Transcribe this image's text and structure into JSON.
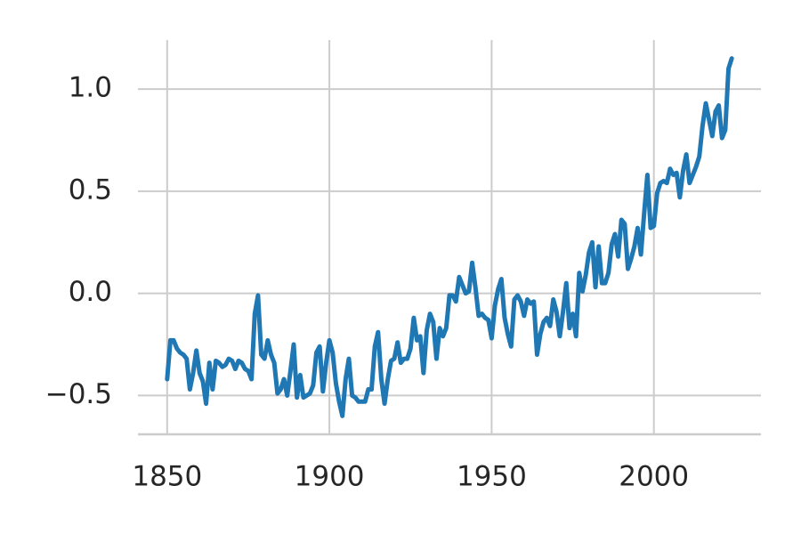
{
  "chart_data": {
    "type": "line",
    "x": [
      1850,
      1851,
      1852,
      1853,
      1854,
      1855,
      1856,
      1857,
      1858,
      1859,
      1860,
      1861,
      1862,
      1863,
      1864,
      1865,
      1866,
      1867,
      1868,
      1869,
      1870,
      1871,
      1872,
      1873,
      1874,
      1875,
      1876,
      1877,
      1878,
      1879,
      1880,
      1881,
      1882,
      1883,
      1884,
      1885,
      1886,
      1887,
      1888,
      1889,
      1890,
      1891,
      1892,
      1893,
      1894,
      1895,
      1896,
      1897,
      1898,
      1899,
      1900,
      1901,
      1902,
      1903,
      1904,
      1905,
      1906,
      1907,
      1908,
      1909,
      1910,
      1911,
      1912,
      1913,
      1914,
      1915,
      1916,
      1917,
      1918,
      1919,
      1920,
      1921,
      1922,
      1923,
      1924,
      1925,
      1926,
      1927,
      1928,
      1929,
      1930,
      1931,
      1932,
      1933,
      1934,
      1935,
      1936,
      1937,
      1938,
      1939,
      1940,
      1941,
      1942,
      1943,
      1944,
      1945,
      1946,
      1947,
      1948,
      1949,
      1950,
      1951,
      1952,
      1953,
      1954,
      1955,
      1956,
      1957,
      1958,
      1959,
      1960,
      1961,
      1962,
      1963,
      1964,
      1965,
      1966,
      1967,
      1968,
      1969,
      1970,
      1971,
      1972,
      1973,
      1974,
      1975,
      1976,
      1977,
      1978,
      1979,
      1980,
      1981,
      1982,
      1983,
      1984,
      1985,
      1986,
      1987,
      1988,
      1989,
      1990,
      1991,
      1992,
      1993,
      1994,
      1995,
      1996,
      1997,
      1998,
      1999,
      2000,
      2001,
      2002,
      2003,
      2004,
      2005,
      2006,
      2007,
      2008,
      2009,
      2010,
      2011,
      2012,
      2013,
      2014,
      2015,
      2016,
      2017,
      2018,
      2019,
      2020,
      2021,
      2022,
      2023,
      2024
    ],
    "series": [
      {
        "color": "#1f77b4",
        "values": [
          -0.42,
          -0.23,
          -0.23,
          -0.27,
          -0.29,
          -0.3,
          -0.32,
          -0.47,
          -0.39,
          -0.28,
          -0.39,
          -0.43,
          -0.54,
          -0.34,
          -0.47,
          -0.33,
          -0.34,
          -0.36,
          -0.35,
          -0.32,
          -0.33,
          -0.37,
          -0.33,
          -0.34,
          -0.37,
          -0.38,
          -0.42,
          -0.1,
          -0.01,
          -0.3,
          -0.32,
          -0.23,
          -0.3,
          -0.34,
          -0.49,
          -0.47,
          -0.42,
          -0.5,
          -0.38,
          -0.25,
          -0.51,
          -0.4,
          -0.51,
          -0.5,
          -0.49,
          -0.45,
          -0.29,
          -0.26,
          -0.48,
          -0.34,
          -0.23,
          -0.29,
          -0.44,
          -0.53,
          -0.6,
          -0.42,
          -0.32,
          -0.5,
          -0.51,
          -0.53,
          -0.53,
          -0.53,
          -0.47,
          -0.47,
          -0.26,
          -0.19,
          -0.42,
          -0.54,
          -0.42,
          -0.33,
          -0.32,
          -0.24,
          -0.34,
          -0.32,
          -0.32,
          -0.27,
          -0.12,
          -0.23,
          -0.21,
          -0.39,
          -0.18,
          -0.1,
          -0.14,
          -0.32,
          -0.17,
          -0.21,
          -0.17,
          -0.01,
          -0.01,
          -0.04,
          0.08,
          0.04,
          0.0,
          0.01,
          0.15,
          0.03,
          -0.11,
          -0.1,
          -0.12,
          -0.13,
          -0.22,
          -0.06,
          0.02,
          0.07,
          -0.12,
          -0.2,
          -0.26,
          -0.03,
          -0.01,
          -0.04,
          -0.11,
          -0.03,
          -0.05,
          -0.04,
          -0.3,
          -0.2,
          -0.14,
          -0.12,
          -0.16,
          -0.03,
          -0.09,
          -0.21,
          -0.09,
          0.05,
          -0.17,
          -0.1,
          -0.21,
          0.1,
          0.01,
          0.09,
          0.2,
          0.25,
          0.03,
          0.23,
          0.05,
          0.05,
          0.1,
          0.24,
          0.29,
          0.18,
          0.36,
          0.34,
          0.12,
          0.17,
          0.23,
          0.32,
          0.19,
          0.39,
          0.58,
          0.32,
          0.33,
          0.49,
          0.54,
          0.55,
          0.54,
          0.61,
          0.58,
          0.59,
          0.47,
          0.6,
          0.68,
          0.54,
          0.58,
          0.62,
          0.67,
          0.82,
          0.93,
          0.85,
          0.77,
          0.89,
          0.92,
          0.76,
          0.8,
          1.1,
          1.15
        ]
      }
    ],
    "xlim": [
      1841,
      2033
    ],
    "xticks": [
      1850,
      1900,
      1950,
      2000
    ],
    "ylim": [
      -0.69,
      1.24
    ],
    "yticks": [
      {
        "value": -0.5,
        "label": "−0.5"
      },
      {
        "value": 0,
        "label": "0.0"
      },
      {
        "value": 0.5,
        "label": "0.5"
      },
      {
        "value": 1,
        "label": "1.0"
      }
    ],
    "grid": true
  }
}
